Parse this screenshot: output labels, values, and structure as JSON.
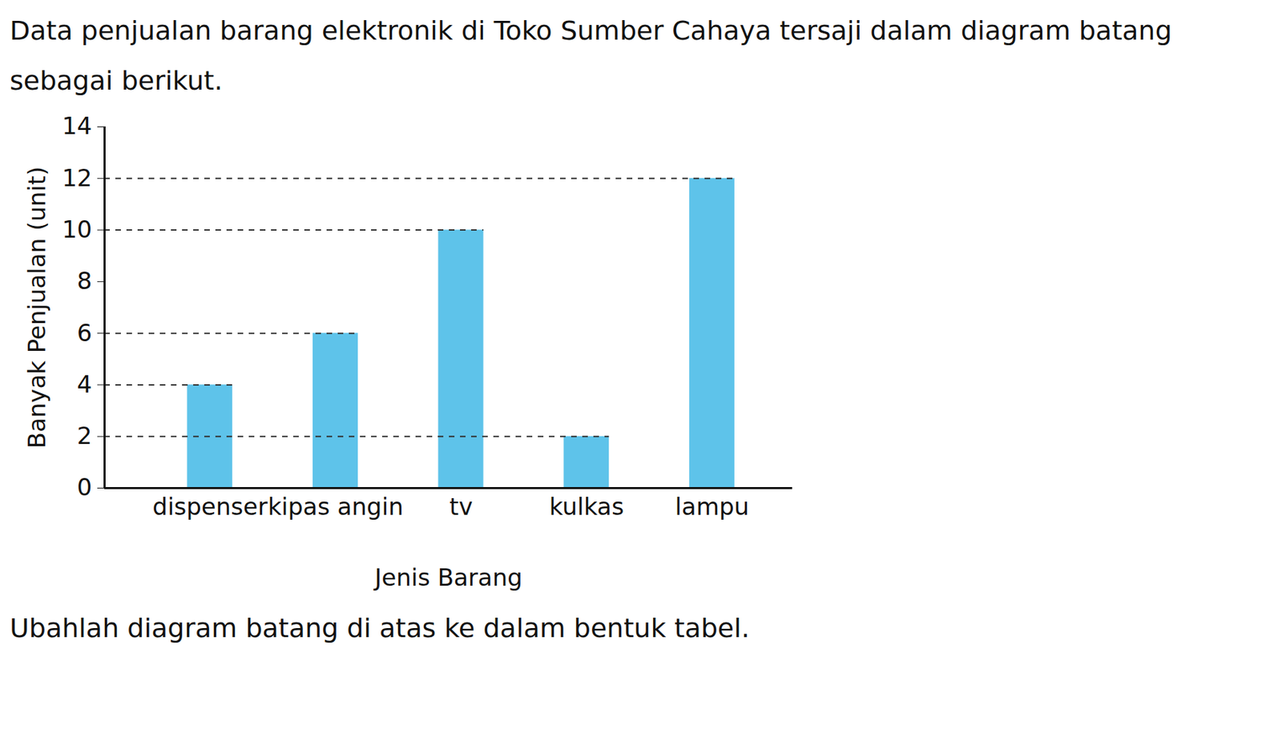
{
  "chart_data": {
    "type": "bar",
    "title": "Data penjualan barang elektronik di Toko Sumber Cahaya tersaji dalam diagram batang sebagai berikut.",
    "caption": "Ubahlah diagram batang di atas ke dalam bentuk tabel.",
    "x_label": "Jenis Barang",
    "y_label": "Banyak Penjualan (unit)",
    "categories": [
      "dispenser",
      "kipas angin",
      "tv",
      "kulkas",
      "lampu"
    ],
    "values": [
      4,
      6,
      10,
      2,
      12
    ],
    "color": "#5ec3ea",
    "ylim": [
      0,
      14
    ],
    "yticks": [
      0,
      2,
      4,
      6,
      8,
      10,
      12,
      14
    ],
    "grid": false,
    "line_style": "dashed"
  }
}
